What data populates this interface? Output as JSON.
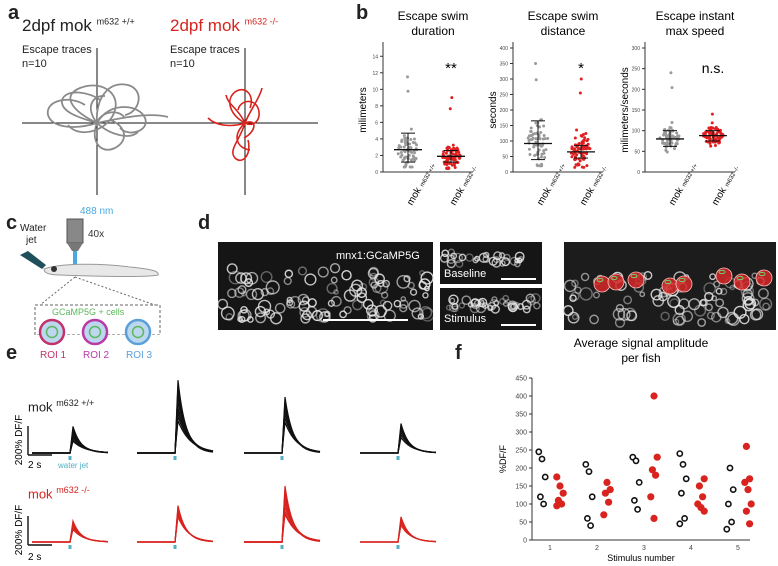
{
  "panels": {
    "a": "a",
    "b": "b",
    "c": "c",
    "d": "d",
    "e": "e",
    "f": "f"
  },
  "panel_a": {
    "wt": {
      "title": "2dpf mok",
      "sup": "m632 +/+",
      "label": "Escape traces",
      "n": "n=10",
      "color": "#8a8a8a"
    },
    "mut": {
      "title": "2dpf mok",
      "sup": "m632 -/-",
      "label": "Escape traces",
      "n": "n=10",
      "color": "#d8231f"
    }
  },
  "panel_b": {
    "plots": [
      {
        "title_line1": "Escape swim",
        "title_line2": "duration",
        "ylabel": "milimeters",
        "sig": "**",
        "yticks": [
          "0",
          "2",
          "4",
          "6",
          "8",
          "10",
          "12",
          "14"
        ],
        "ylim": [
          0,
          15
        ]
      },
      {
        "title_line1": "Escape swim",
        "title_line2": "distance",
        "ylabel": "seconds",
        "sig": "*",
        "yticks": [
          "0",
          "50",
          "100",
          "150",
          "200",
          "250",
          "300",
          "350",
          "400"
        ],
        "ylim": [
          0,
          400
        ]
      },
      {
        "title_line1": "Escape instant",
        "title_line2": "max speed",
        "ylabel": "milimeters/seconds",
        "sig": "n.s.",
        "yticks": [
          "0",
          "50",
          "100",
          "150",
          "200",
          "250",
          "300"
        ],
        "ylim": [
          0,
          300
        ]
      }
    ],
    "x_wt": "mok",
    "x_wt_sup": "m632 +/+",
    "x_mut": "mok",
    "x_mut_sup": "m632 -/-"
  },
  "panel_c": {
    "laser": "488 nm",
    "objective": "40x",
    "water": "Water",
    "jet": "jet",
    "cells_label": "GCaMP5G + cells",
    "rois": [
      "ROI 1",
      "ROI 2",
      "ROI 3"
    ],
    "roi_colors": [
      "#c2316a",
      "#b83aa8",
      "#5aa0d8"
    ],
    "laser_color": "#4aa8e0",
    "green": "#5cb85c"
  },
  "panel_d": {
    "img1_label": "mnx1:GCaMP5G",
    "baseline": "Baseline",
    "stimulus": "Stimulus"
  },
  "panel_e": {
    "wt_label": "mok",
    "wt_sup": "m632 +/+",
    "mut_label": "mok",
    "mut_sup": "m632 -/-",
    "ylabel": "200% DF/F",
    "xscale": "2 s",
    "stim_label": "water jet",
    "stim_color": "#4fb0c6",
    "wt_peaks": [
      [
        0.95,
        0.85,
        0.78,
        0.7,
        0.62,
        0.55,
        0.48,
        0.42
      ],
      [
        2.6,
        2.4,
        2.2,
        2.0,
        1.8,
        1.6,
        1.45,
        1.3,
        1.15
      ],
      [
        2.0,
        1.85,
        1.7,
        1.55,
        1.4,
        1.25,
        1.1
      ],
      [
        1.05,
        0.95,
        0.85,
        0.75,
        0.65,
        0.55
      ]
    ],
    "mut_peaks": [
      [
        0.75,
        0.68,
        0.6,
        0.52,
        0.45
      ],
      [
        1.3,
        1.2,
        1.1,
        1.0,
        0.9
      ],
      [
        2.0,
        1.85,
        1.7,
        1.55,
        1.4,
        1.25,
        1.1,
        1.0
      ],
      [
        0.9,
        0.8,
        0.7,
        0.6
      ]
    ]
  },
  "panel_f": {
    "title_line1": "Average signal amplitude",
    "title_line2": "per fish",
    "chart_data": {
      "type": "scatter",
      "title": "Average signal amplitude per fish",
      "xlabel": "Stimulus number",
      "ylabel": "%DF/F",
      "xticks": [
        "1",
        "2",
        "3",
        "4",
        "5"
      ],
      "yticks": [
        "0",
        "50",
        "100",
        "150",
        "200",
        "250",
        "300",
        "350",
        "400",
        "450"
      ],
      "ylim": [
        0,
        450
      ],
      "series": [
        {
          "name": "mok m632 +/+",
          "color": "#111111",
          "points": [
            [
              1,
              245
            ],
            [
              1,
              225
            ],
            [
              1,
              175
            ],
            [
              1,
              120
            ],
            [
              1,
              100
            ],
            [
              2,
              210
            ],
            [
              2,
              190
            ],
            [
              2,
              120
            ],
            [
              2,
              60
            ],
            [
              2,
              40
            ],
            [
              3,
              230
            ],
            [
              3,
              220
            ],
            [
              3,
              160
            ],
            [
              3,
              110
            ],
            [
              3,
              85
            ],
            [
              4,
              240
            ],
            [
              4,
              210
            ],
            [
              4,
              170
            ],
            [
              4,
              130
            ],
            [
              4,
              60
            ],
            [
              4,
              45
            ],
            [
              5,
              200
            ],
            [
              5,
              140
            ],
            [
              5,
              100
            ],
            [
              5,
              50
            ],
            [
              5,
              30
            ]
          ]
        },
        {
          "name": "mok m632 -/-",
          "color": "#d8231f",
          "points": [
            [
              1,
              175
            ],
            [
              1,
              150
            ],
            [
              1,
              130
            ],
            [
              1,
              110
            ],
            [
              1,
              100
            ],
            [
              1,
              95
            ],
            [
              2,
              160
            ],
            [
              2,
              140
            ],
            [
              2,
              130
            ],
            [
              2,
              105
            ],
            [
              2,
              70
            ],
            [
              3,
              400
            ],
            [
              3,
              230
            ],
            [
              3,
              195
            ],
            [
              3,
              180
            ],
            [
              3,
              120
            ],
            [
              3,
              60
            ],
            [
              4,
              170
            ],
            [
              4,
              150
            ],
            [
              4,
              120
            ],
            [
              4,
              100
            ],
            [
              4,
              90
            ],
            [
              4,
              80
            ],
            [
              5,
              260
            ],
            [
              5,
              170
            ],
            [
              5,
              160
            ],
            [
              5,
              140
            ],
            [
              5,
              100
            ],
            [
              5,
              80
            ],
            [
              5,
              45
            ]
          ]
        }
      ]
    }
  }
}
